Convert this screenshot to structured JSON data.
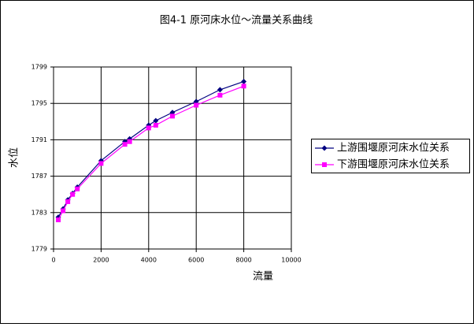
{
  "chart_data": {
    "type": "line",
    "title": "图4-1  原河床水位～流量关系曲线",
    "x_label": "流量",
    "y_label": "水位",
    "x": [
      200,
      400,
      600,
      800,
      1000,
      2000,
      3000,
      3200,
      4000,
      4300,
      5000,
      6000,
      7000,
      8000
    ],
    "series": [
      {
        "name": "上游围堰原河床水位关系",
        "color": "#000080",
        "marker": "diamond",
        "values": [
          1782.5,
          1783.4,
          1784.4,
          1785.1,
          1785.8,
          1788.7,
          1790.8,
          1791.1,
          1792.6,
          1793.1,
          1794.0,
          1795.2,
          1796.5,
          1797.4
        ]
      },
      {
        "name": "下游围堰原河床水位关系",
        "color": "#ff00ff",
        "marker": "square",
        "values": [
          1782.2,
          1783.2,
          1784.2,
          1785.0,
          1785.6,
          1788.4,
          1790.5,
          1790.8,
          1792.3,
          1792.6,
          1793.6,
          1794.8,
          1795.9,
          1796.9
        ]
      }
    ],
    "xlim": [
      0,
      10000
    ],
    "xticks": [
      0,
      2000,
      4000,
      6000,
      8000,
      10000
    ],
    "ylim": [
      1779,
      1799
    ],
    "yticks": [
      1779,
      1783,
      1787,
      1791,
      1795,
      1799
    ],
    "grid": true,
    "legend": "right"
  }
}
